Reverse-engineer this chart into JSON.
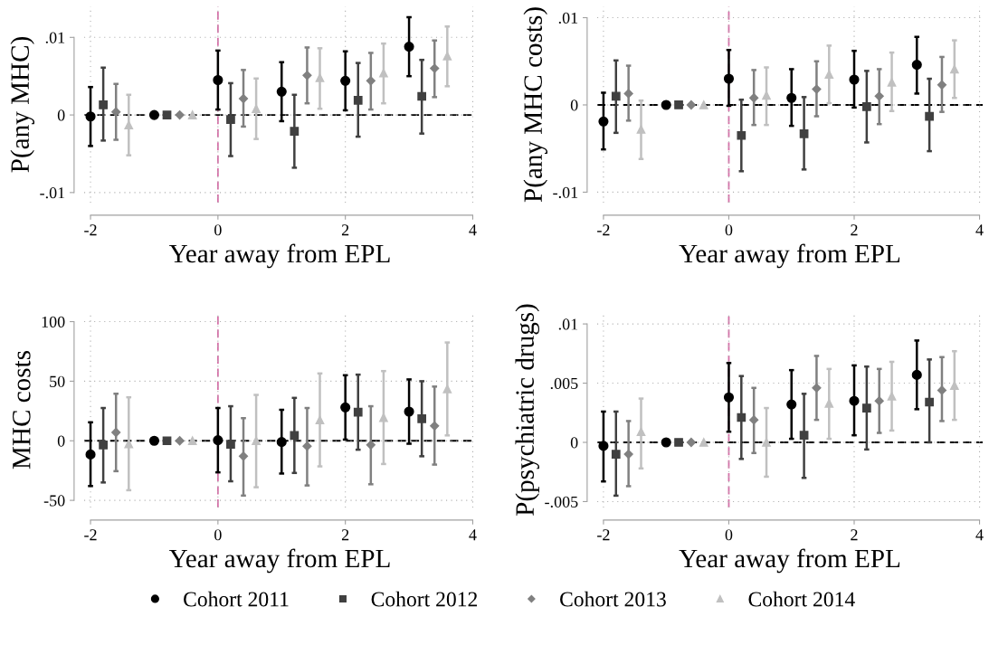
{
  "chart_data": [
    {
      "type": "scatter",
      "ylabel": "P(any MHC)",
      "xlabel": "Year away from EPL",
      "xlim": [
        -2.1,
        4.05
      ],
      "xticks": [
        -2,
        0,
        2,
        4
      ],
      "ylim": [
        -0.0113,
        0.014
      ],
      "yticks": [
        {
          "value": -0.01,
          "label": "-.01"
        },
        0,
        {
          "value": 0.01,
          "label": ".01"
        }
      ],
      "grid": true,
      "legend": "bottom",
      "ref_lines": [
        {
          "axis": "x",
          "value": 0,
          "color": "#d66fa8",
          "line_style": "dashed"
        },
        {
          "axis": "y",
          "value": 0,
          "color": "#000000",
          "line_style": "dashed"
        }
      ],
      "series": [
        {
          "name": "Cohort 2011",
          "color": "#000000",
          "marker": "circle",
          "x": [
            -2,
            -1,
            0,
            1,
            2,
            3
          ],
          "values": [
            -0.0002,
            0,
            0.0045,
            0.003,
            0.0044,
            0.0088
          ],
          "errors": [
            [
              -0.004,
              0.0036
            ],
            null,
            [
              0.0007,
              0.0083
            ],
            [
              -0.0008,
              0.0068
            ],
            [
              0.0006,
              0.0082
            ],
            [
              0.005,
              0.0126
            ]
          ]
        },
        {
          "name": "Cohort 2012",
          "color": "#404040",
          "marker": "square",
          "x": [
            -1.8,
            -0.8,
            0.2,
            1.2,
            2.2,
            3.2
          ],
          "values": [
            0.0013,
            0,
            -0.0006,
            -0.0021,
            0.0019,
            0.0024
          ],
          "errors": [
            [
              -0.0033,
              0.0061
            ],
            null,
            [
              -0.0053,
              0.0041
            ],
            [
              -0.0068,
              0.0026
            ],
            [
              -0.0028,
              0.0067
            ],
            [
              -0.0024,
              0.0071
            ]
          ]
        },
        {
          "name": "Cohort 2013",
          "color": "#808080",
          "marker": "diamond",
          "x": [
            -1.6,
            -0.6,
            0.4,
            1.4,
            2.4,
            3.4
          ],
          "values": [
            0.0004,
            0,
            0.0021,
            0.0051,
            0.0044,
            0.006
          ],
          "errors": [
            [
              -0.0032,
              0.004
            ],
            null,
            [
              -0.0015,
              0.0058
            ],
            [
              0.0015,
              0.0087
            ],
            [
              0.0007,
              0.008
            ],
            [
              0.0023,
              0.0096
            ]
          ]
        },
        {
          "name": "Cohort 2014",
          "color": "#c0c0c0",
          "marker": "triangle",
          "x": [
            -1.4,
            -0.4,
            0.6,
            1.6,
            2.6,
            3.6
          ],
          "values": [
            -0.0013,
            0,
            0.0008,
            0.0048,
            0.0054,
            0.0076
          ],
          "errors": [
            [
              -0.0052,
              0.0026
            ],
            null,
            [
              -0.0031,
              0.0047
            ],
            [
              0.0008,
              0.0086
            ],
            [
              0.0015,
              0.0092
            ],
            [
              0.0037,
              0.0114
            ]
          ]
        }
      ]
    },
    {
      "type": "scatter",
      "ylabel": "P(any MHC costs)",
      "xlabel": "Year away from EPL",
      "xlim": [
        -2.1,
        4.05
      ],
      "xticks": [
        -2,
        0,
        2,
        4
      ],
      "ylim": [
        -0.0112,
        0.0113
      ],
      "yticks": [
        {
          "value": -0.01,
          "label": "-.01"
        },
        0,
        {
          "value": 0.01,
          "label": ".01"
        }
      ],
      "grid": true,
      "ref_lines": [
        {
          "axis": "x",
          "value": 0,
          "color": "#d66fa8",
          "line_style": "dashed"
        },
        {
          "axis": "y",
          "value": 0,
          "color": "#000000",
          "line_style": "dashed"
        }
      ],
      "series": [
        {
          "color": "#000000",
          "marker": "circle",
          "x": [
            -2,
            -1,
            0,
            1,
            2,
            3
          ],
          "values": [
            -0.0019,
            0,
            0.003,
            0.0008,
            0.0029,
            0.0046
          ],
          "errors": [
            [
              -0.0051,
              0.0014
            ],
            null,
            [
              -0.0001,
              0.0063
            ],
            [
              -0.0024,
              0.0041
            ],
            [
              -0.0003,
              0.0062
            ],
            [
              0.0013,
              0.0078
            ]
          ]
        },
        {
          "color": "#404040",
          "marker": "square",
          "x": [
            -1.8,
            -0.8,
            0.2,
            1.2,
            2.2,
            3.2
          ],
          "values": [
            0.001,
            0,
            -0.0035,
            -0.0033,
            -0.0002,
            -0.0013
          ],
          "errors": [
            [
              -0.0032,
              0.0051
            ],
            null,
            [
              -0.0076,
              0.0006
            ],
            [
              -0.0074,
              0.0009
            ],
            [
              -0.0043,
              0.0039
            ],
            [
              -0.0053,
              0.003
            ]
          ]
        },
        {
          "color": "#808080",
          "marker": "diamond",
          "x": [
            -1.6,
            -0.6,
            0.4,
            1.4,
            2.4,
            3.4
          ],
          "values": [
            0.0013,
            0,
            0.0008,
            0.0018,
            0.001,
            0.0023
          ],
          "errors": [
            [
              -0.0018,
              0.0045
            ],
            null,
            [
              -0.0023,
              0.004
            ],
            [
              -0.0013,
              0.005
            ],
            [
              -0.0022,
              0.0041
            ],
            [
              -0.0008,
              0.0055
            ]
          ]
        },
        {
          "color": "#c0c0c0",
          "marker": "triangle",
          "x": [
            -1.4,
            -0.4,
            0.6,
            1.6,
            2.6,
            3.6
          ],
          "values": [
            -0.0028,
            0,
            0.0011,
            0.0035,
            0.0026,
            0.0041
          ],
          "errors": [
            [
              -0.0062,
              0.0005
            ],
            null,
            [
              -0.0023,
              0.0043
            ],
            [
              0.0002,
              0.0068
            ],
            [
              -0.0007,
              0.006
            ],
            [
              0.0008,
              0.0074
            ]
          ]
        }
      ]
    },
    {
      "type": "scatter",
      "ylabel": "MHC costs",
      "xlabel": "Year away from EPL",
      "xlim": [
        -2.1,
        4.05
      ],
      "xticks": [
        -2,
        0,
        2,
        4
      ],
      "ylim": [
        -56,
        108
      ],
      "yticks": [
        -50,
        0,
        50,
        100
      ],
      "grid": true,
      "ref_lines": [
        {
          "axis": "x",
          "value": 0,
          "color": "#d66fa8",
          "line_style": "dashed"
        },
        {
          "axis": "y",
          "value": 0,
          "color": "#000000",
          "line_style": "dashed"
        }
      ],
      "series": [
        {
          "color": "#000000",
          "marker": "circle",
          "x": [
            -2,
            -1,
            0,
            1,
            2,
            3
          ],
          "values": [
            -11.5,
            0,
            0.5,
            -1,
            28,
            24.5
          ],
          "errors": [
            [
              -38,
              15.5
            ],
            null,
            [
              -26.5,
              27.5
            ],
            [
              -27.5,
              26
            ],
            [
              1,
              55
            ],
            [
              -2.5,
              51.5
            ]
          ]
        },
        {
          "color": "#404040",
          "marker": "square",
          "x": [
            -1.8,
            -0.8,
            0.2,
            1.2,
            2.2,
            3.2
          ],
          "values": [
            -3.5,
            0,
            -3,
            4.5,
            24,
            18.5
          ],
          "errors": [
            [
              -35,
              27.5
            ],
            null,
            [
              -34,
              29
            ],
            [
              -27,
              36
            ],
            [
              -7.5,
              55.5
            ],
            [
              -13,
              50
            ]
          ]
        },
        {
          "color": "#808080",
          "marker": "diamond",
          "x": [
            -1.6,
            -0.6,
            0.4,
            1.4,
            2.4,
            3.4
          ],
          "values": [
            7,
            0,
            -13,
            -4.5,
            -3.5,
            12.5
          ],
          "errors": [
            [
              -25.5,
              39.5
            ],
            null,
            [
              -46,
              19
            ],
            [
              -37.5,
              27.5
            ],
            [
              -36.5,
              29
            ],
            [
              -20,
              45.5
            ]
          ]
        },
        {
          "color": "#c0c0c0",
          "marker": "triangle",
          "x": [
            -1.4,
            -0.4,
            0.6,
            1.6,
            2.6,
            3.6
          ],
          "values": [
            -2.5,
            0,
            0,
            17.5,
            19.5,
            43.5
          ],
          "errors": [
            [
              -41.5,
              36.5
            ],
            null,
            [
              -39,
              38.5
            ],
            [
              -21.5,
              56.5
            ],
            [
              -19.5,
              58.5
            ],
            [
              4.5,
              82.5
            ]
          ]
        }
      ]
    },
    {
      "type": "scatter",
      "ylabel": "P(psychiatric drugs)",
      "xlabel": "Year away from EPL",
      "xlim": [
        -2.1,
        4.05
      ],
      "xticks": [
        -2,
        0,
        2,
        4
      ],
      "ylim": [
        -0.0055,
        0.011
      ],
      "yticks": [
        {
          "value": -0.005,
          "label": "-.005"
        },
        0,
        {
          "value": 0.005,
          "label": ".005"
        },
        {
          "value": 0.01,
          "label": ".01"
        }
      ],
      "grid": true,
      "ref_lines": [
        {
          "axis": "x",
          "value": 0,
          "color": "#d66fa8",
          "line_style": "dashed"
        },
        {
          "axis": "y",
          "value": 0,
          "color": "#000000",
          "line_style": "dashed"
        }
      ],
      "series": [
        {
          "color": "#000000",
          "marker": "circle",
          "x": [
            -2,
            -1,
            0,
            1,
            2,
            3
          ],
          "values": [
            -0.0003,
            0,
            0.0038,
            0.0032,
            0.0035,
            0.0057
          ],
          "errors": [
            [
              -0.0033,
              0.0026
            ],
            null,
            [
              0.0009,
              0.0067
            ],
            [
              0.0003,
              0.0061
            ],
            [
              0.0006,
              0.0065
            ],
            [
              0.0028,
              0.0086
            ]
          ]
        },
        {
          "color": "#404040",
          "marker": "square",
          "x": [
            -1.8,
            -0.8,
            0.2,
            1.2,
            2.2,
            3.2
          ],
          "values": [
            -0.001,
            0,
            0.0021,
            0.0006,
            0.0029,
            0.0034
          ],
          "errors": [
            [
              -0.0045,
              0.0026
            ],
            null,
            [
              -0.0014,
              0.0056
            ],
            [
              -0.003,
              0.0041
            ],
            [
              -0.0006,
              0.0064
            ],
            [
              0,
              0.007
            ]
          ]
        },
        {
          "color": "#808080",
          "marker": "diamond",
          "x": [
            -1.6,
            -0.6,
            0.4,
            1.4,
            2.4,
            3.4
          ],
          "values": [
            -0.001,
            0,
            0.0019,
            0.0046,
            0.0035,
            0.0044
          ],
          "errors": [
            [
              -0.0037,
              0.0018
            ],
            null,
            [
              -0.0009,
              0.0046
            ],
            [
              0.0019,
              0.0073
            ],
            [
              0.0008,
              0.0062
            ],
            [
              0.0018,
              0.0072
            ]
          ]
        },
        {
          "color": "#c0c0c0",
          "marker": "triangle",
          "x": [
            -1.4,
            -0.4,
            0.6,
            1.6,
            2.6,
            3.6
          ],
          "values": [
            0.0009,
            0,
            0,
            0.0033,
            0.0039,
            0.0048
          ],
          "errors": [
            [
              -0.0022,
              0.0037
            ],
            null,
            [
              -0.0029,
              0.0029
            ],
            [
              0.0003,
              0.0062
            ],
            [
              0.001,
              0.0068
            ],
            [
              0.0019,
              0.0077
            ]
          ]
        }
      ]
    }
  ]
}
